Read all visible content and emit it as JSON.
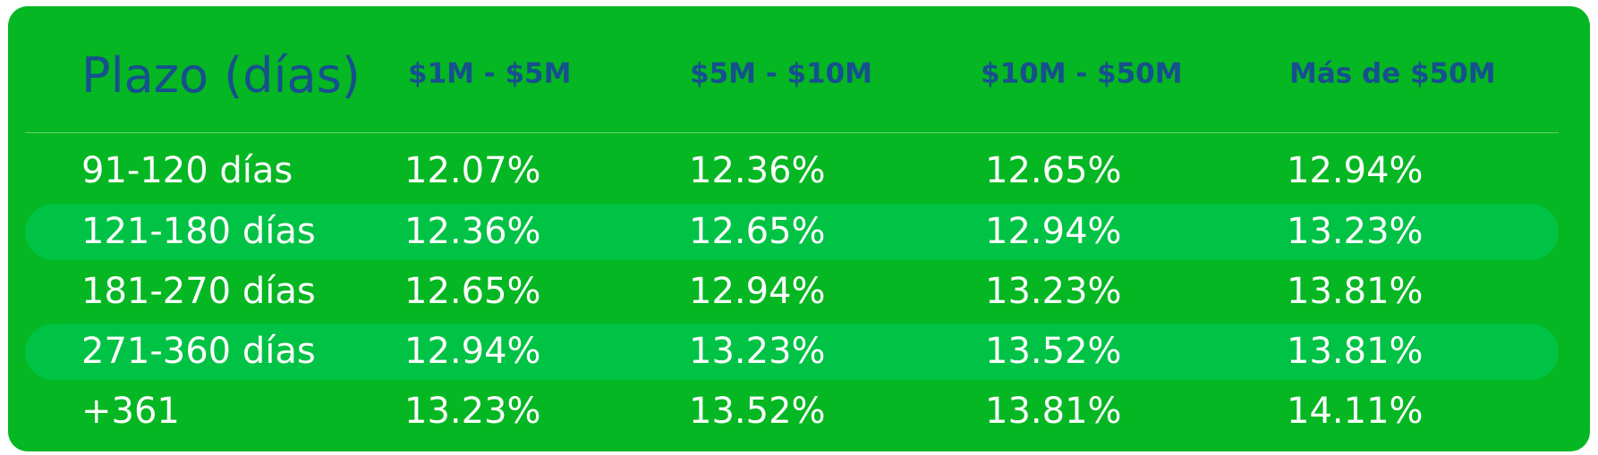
{
  "table": {
    "header": [
      "Plazo (días)",
      "$1M - $5M",
      "$5M - $10M",
      "$10M - $50M",
      "Más de $50M"
    ],
    "rows": [
      [
        "91-120 días",
        "12.07%",
        "12.36%",
        "12.65%",
        "12.94%"
      ],
      [
        "121-180 días",
        "12.36%",
        "12.65%",
        "12.94%",
        "13.23%"
      ],
      [
        "181-270 días",
        "12.65%",
        "12.94%",
        "13.23%",
        "13.81%"
      ],
      [
        "271-360 días",
        "12.94%",
        "13.23%",
        "13.52%",
        "13.81%"
      ],
      [
        "+361",
        "13.23%",
        "13.52%",
        "13.81%",
        "14.11%"
      ]
    ]
  }
}
